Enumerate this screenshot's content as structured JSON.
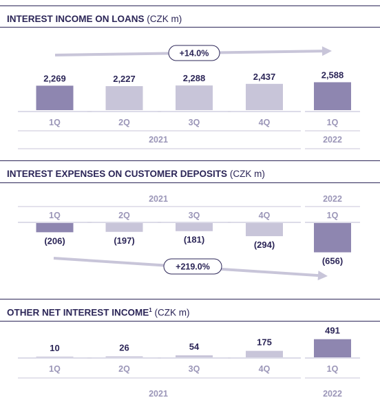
{
  "colors": {
    "highlight": "#8e86b0",
    "regular": "#c8c5d9",
    "text": "#2b2557",
    "muted": "#9b96b8",
    "arrow": "#c8c5d9"
  },
  "chart_data": [
    {
      "type": "bar",
      "title": "INTEREST INCOME ON LOANS",
      "unit": "(CZK m)",
      "categories": [
        "1Q",
        "2Q",
        "3Q",
        "4Q",
        "1Q"
      ],
      "years": [
        "2021",
        "2022"
      ],
      "values": [
        2269,
        2227,
        2288,
        2437,
        2588
      ],
      "value_labels": [
        "2,269",
        "2,227",
        "2,288",
        "2,437",
        "2,588"
      ],
      "highlighted": [
        true,
        false,
        false,
        false,
        true
      ],
      "trend_label": "+14.0%"
    },
    {
      "type": "bar",
      "title": "INTEREST EXPENSES ON CUSTOMER DEPOSITS",
      "unit": "(CZK m)",
      "categories": [
        "1Q",
        "2Q",
        "3Q",
        "4Q",
        "1Q"
      ],
      "years": [
        "2021",
        "2022"
      ],
      "values": [
        -206,
        -197,
        -181,
        -294,
        -656
      ],
      "value_labels": [
        "(206)",
        "(197)",
        "(181)",
        "(294)",
        "(656)"
      ],
      "highlighted": [
        true,
        false,
        false,
        false,
        true
      ],
      "trend_label": "+219.0%"
    },
    {
      "type": "bar",
      "title": "OTHER NET INTEREST INCOME",
      "title_sup": "1",
      "unit": "(CZK m)",
      "categories": [
        "1Q",
        "2Q",
        "3Q",
        "4Q",
        "1Q"
      ],
      "years": [
        "2021",
        "2022"
      ],
      "values": [
        10,
        26,
        54,
        175,
        491
      ],
      "value_labels": [
        "10",
        "26",
        "54",
        "175",
        "491"
      ],
      "highlighted": [
        false,
        false,
        false,
        false,
        true
      ],
      "trend_label": ""
    }
  ]
}
